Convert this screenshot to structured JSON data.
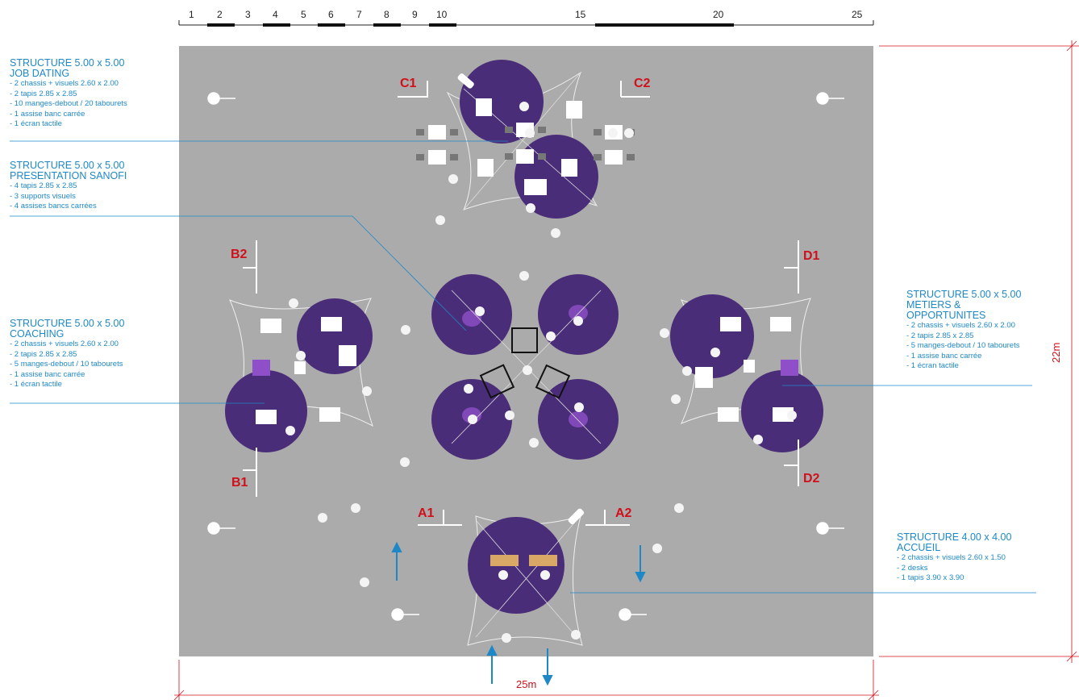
{
  "scale": {
    "numbers": [
      "1",
      "2",
      "3",
      "4",
      "5",
      "6",
      "7",
      "8",
      "9",
      "10",
      "15",
      "20",
      "25"
    ]
  },
  "dimensions": {
    "width": "25m",
    "height": "22m"
  },
  "zones": [
    "C1",
    "C2",
    "B2",
    "B1",
    "D1",
    "D2",
    "A1",
    "A2"
  ],
  "notes": {
    "job_dating": {
      "title1": "STRUCTURE 5.00 x 5.00",
      "title2": "JOB DATING",
      "lines": [
        "- 2 chassis + visuels 2.60 x 2.00",
        "- 2 tapis 2.85 x 2.85",
        "- 10 manges-debout / 20 tabourets",
        "- 1 assise banc carrée",
        "- 1 écran tactile"
      ]
    },
    "presentation": {
      "title1": "STRUCTURE 5.00 x 5.00",
      "title2": "PRESENTATION SANOFI",
      "lines": [
        "- 4 tapis 2.85 x 2.85",
        "- 3 supports visuels",
        "- 4 assises bancs carrées"
      ]
    },
    "coaching": {
      "title1": "STRUCTURE 5.00 x 5.00",
      "title2": "COACHING",
      "lines": [
        "- 2 chassis + visuels 2.60 x 2.00",
        "- 2 tapis 2.85 x 2.85",
        "- 5 manges-debout / 10 tabourets",
        "- 1 assise banc carrée",
        "- 1 écran tactile"
      ]
    },
    "metiers": {
      "title1": "STRUCTURE 5.00 x 5.00",
      "title2": "METIERS &",
      "title3": "OPPORTUNITES",
      "lines": [
        "- 2 chassis + visuels 2.60 x 2.00",
        "- 2 tapis 2.85 x 2.85",
        "- 5 manges-debout / 10 tabourets",
        "- 1 assise banc carrée",
        "- 1 écran tactile"
      ]
    },
    "accueil": {
      "title1": "STRUCTURE 4.00 x 4.00",
      "title2": "ACCUEIL",
      "lines": [
        "- 2 chassis + visuels 2.60 x 1.50",
        "- 2 desks",
        "- 1 tapis 3.90 x 3.90"
      ]
    }
  },
  "colors": {
    "floor": "#ababab",
    "carpet": "#4a2d78",
    "label_red": "#d0101a",
    "note_blue": "#1e88c7",
    "highlight": "#8e4fc8",
    "desk": "#d9a866"
  }
}
